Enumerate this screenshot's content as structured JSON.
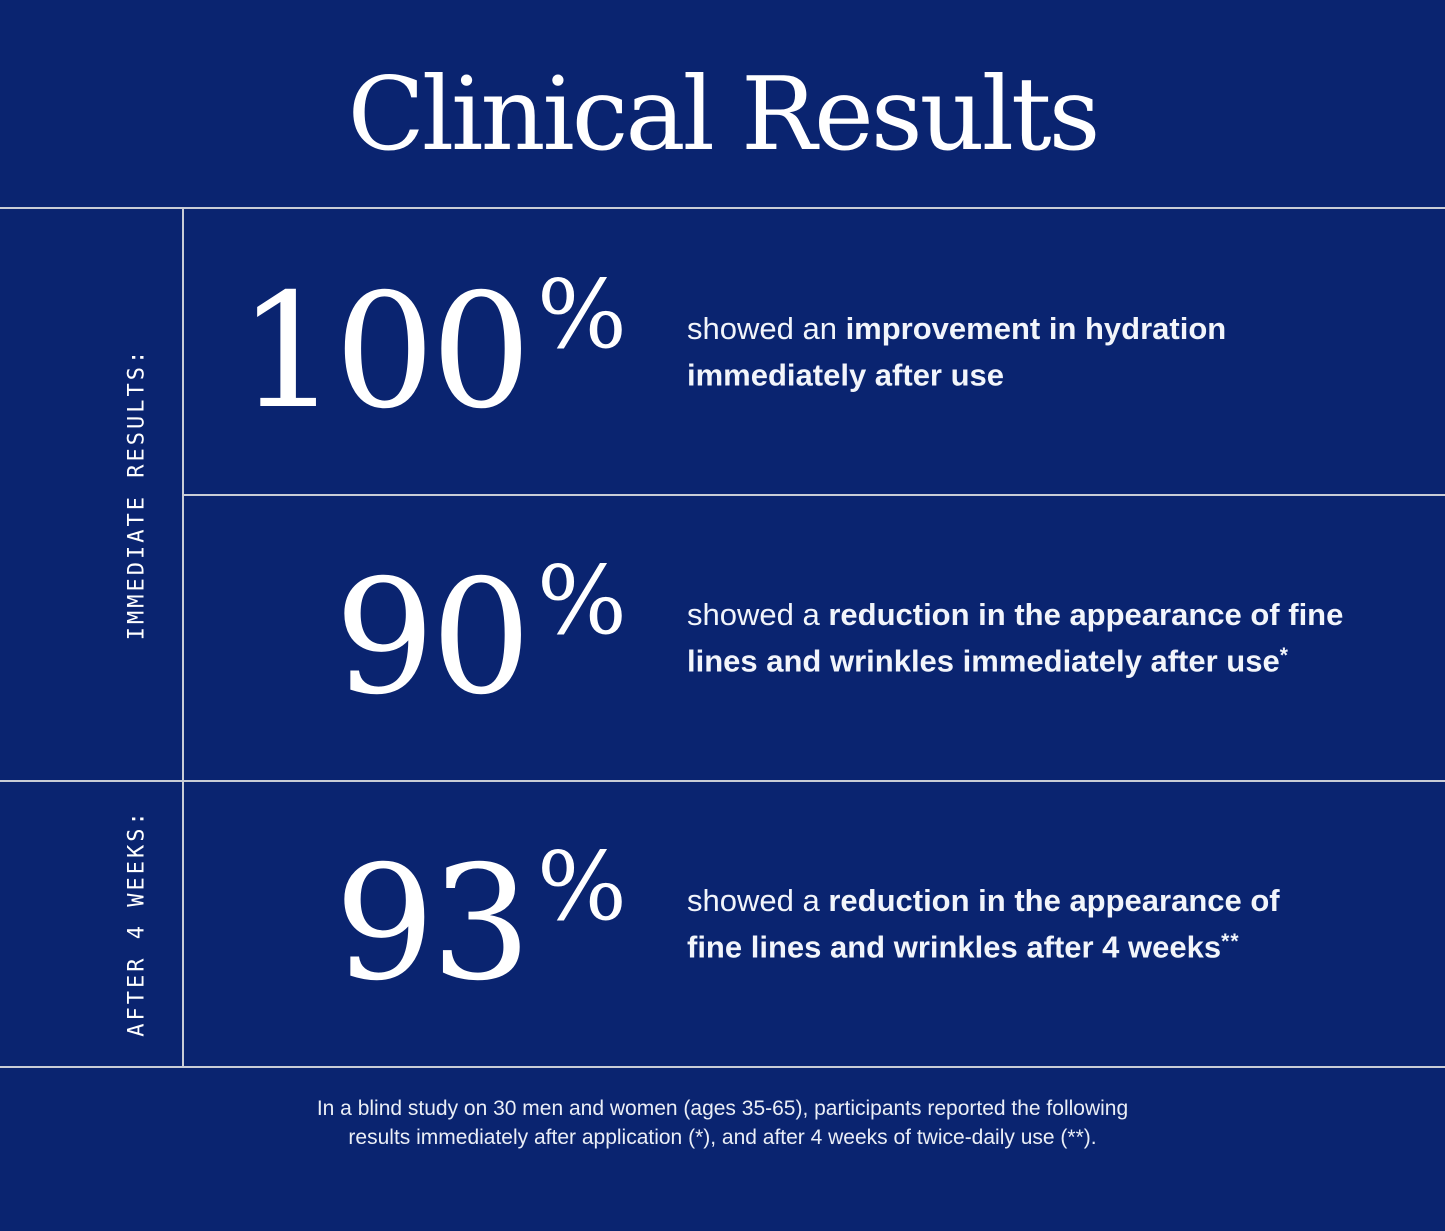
{
  "title": "Clinical Results",
  "colors": {
    "background": "#0a2470",
    "divider": "#c9cdd6",
    "text": "#ffffff"
  },
  "sections": [
    {
      "label": "IMMEDIATE RESULTS:"
    },
    {
      "label": "AFTER 4 WEEKS:"
    }
  ],
  "stats": [
    {
      "value": "100",
      "unit": "%",
      "desc_regular": "showed an ",
      "desc_bold_line1": "improvement in hydration",
      "desc_bold_line2": "immediately after use",
      "note": ""
    },
    {
      "value": "90",
      "unit": "%",
      "desc_regular": "showed a ",
      "desc_bold_line1": "reduction in the appearance of fine",
      "desc_bold_line2": "lines and wrinkles immediately after use",
      "note": "*"
    },
    {
      "value": "93",
      "unit": "%",
      "desc_regular": "showed a ",
      "desc_bold_line1": "reduction in the appearance of",
      "desc_bold_line2": "fine lines and wrinkles after 4 weeks",
      "note": "**"
    }
  ],
  "footnote": {
    "line1": "In a blind study on 30 men and women (ages 35-65), participants reported the following",
    "line2": "results immediately after application (*), and after 4 weeks of twice-daily use (**)."
  }
}
